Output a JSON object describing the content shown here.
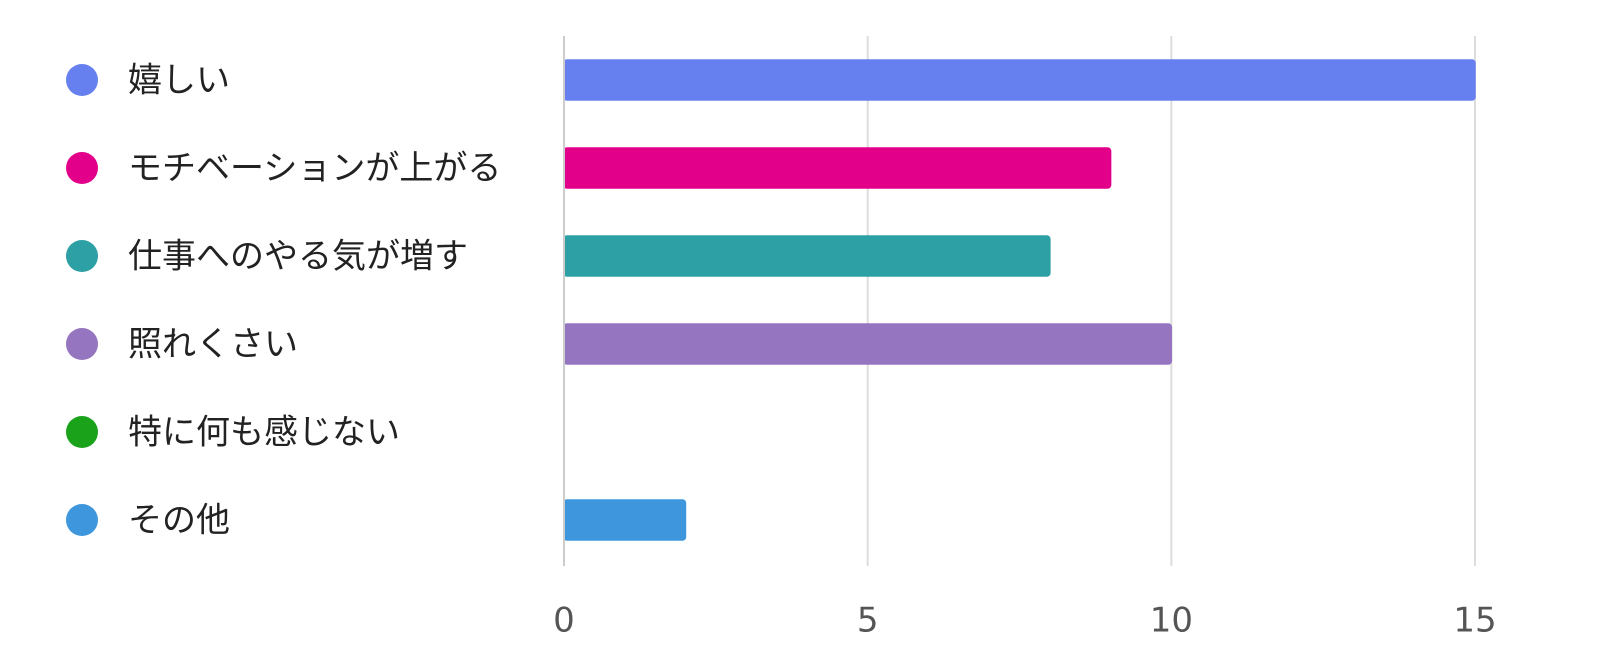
{
  "chart_data": {
    "type": "bar",
    "orientation": "horizontal",
    "categories": [
      "嬉しい",
      "モチベーションが上がる",
      "仕事へのやる気が増す",
      "照れくさい",
      "特に何も感じない",
      "その他"
    ],
    "values": [
      15,
      9,
      8,
      10,
      0,
      2
    ],
    "colors": [
      "#6680f0",
      "#e2008b",
      "#2ca0a4",
      "#9575bf",
      "#1aa31a",
      "#3e97dd"
    ],
    "xlim": [
      0,
      15
    ],
    "xticks": [
      0,
      5,
      10,
      15
    ],
    "grid": true
  }
}
